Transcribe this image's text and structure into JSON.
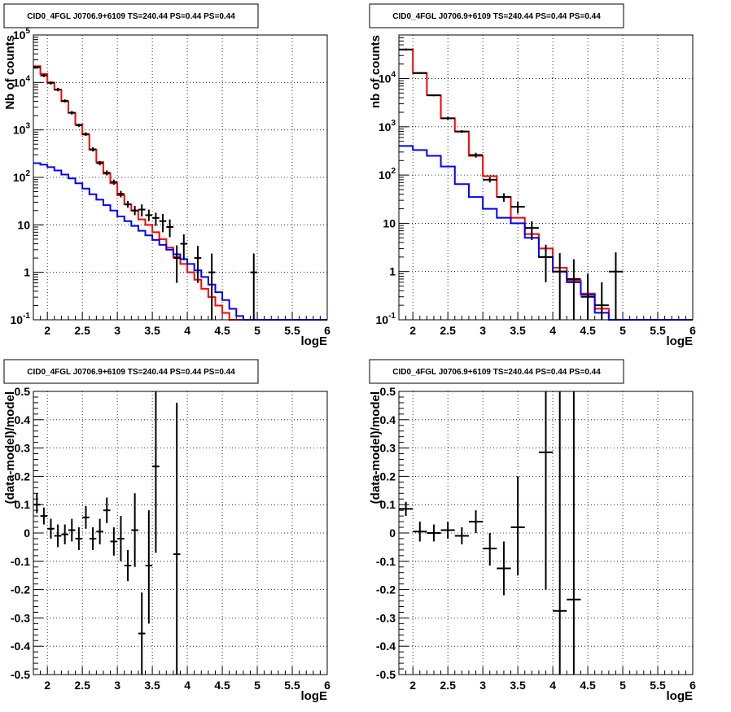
{
  "chart_data": [
    {
      "id": "tl",
      "type": "line",
      "title": "CID0_4FGL J0706.9+6109 TS=240.44 PS=0.44 PS=0.44",
      "xlabel": "logE",
      "ylabel": "Nb of counts",
      "log_y": true,
      "xlim": [
        1.8,
        6.0
      ],
      "ylim": [
        0.1,
        100000
      ],
      "grid": true,
      "x_ticks": [
        2,
        2.5,
        3,
        3.5,
        4,
        4.5,
        5,
        5.5,
        6
      ],
      "x_tick_labels": [
        "2",
        "2.5",
        "3",
        "3.5",
        "4",
        "4.5",
        "5",
        "5.5",
        "6"
      ],
      "y_ticks": [
        0.1,
        1,
        10,
        100,
        1000,
        10000,
        100000
      ],
      "y_tick_labels": [
        "10^-1",
        "1",
        "10",
        "10^2",
        "10^3",
        "10^4",
        "10^5"
      ],
      "series": [
        {
          "kind": "step",
          "color": "#ff0000",
          "edges": [
            1.8,
            1.9,
            2.0,
            2.1,
            2.2,
            2.3,
            2.4,
            2.5,
            2.6,
            2.7,
            2.8,
            2.9,
            3.0,
            3.1,
            3.2,
            3.3,
            3.4,
            3.5,
            3.6,
            3.7,
            3.8,
            3.9,
            4.0,
            4.1,
            4.2,
            4.3,
            4.4,
            4.5,
            4.6,
            4.7,
            4.8,
            4.9,
            5.0,
            5.1,
            5.2,
            5.3,
            5.4,
            5.5,
            5.6,
            5.7,
            5.8,
            5.9,
            6.0
          ],
          "values": [
            22000,
            15000,
            10000,
            7000,
            4000,
            2300,
            1300,
            800,
            380,
            210,
            120,
            75,
            42,
            27,
            20,
            13,
            10,
            7,
            5,
            3.3,
            2.1,
            1.5,
            1.0,
            0.7,
            0.45,
            0.3,
            0.2,
            0.14,
            0.1,
            0.1,
            0.1,
            0.1,
            0.1,
            0.1,
            0.1,
            0.1,
            0.1,
            0.1,
            0.1,
            0.1,
            0.1,
            0.1
          ]
        },
        {
          "kind": "step",
          "color": "#0000ff",
          "edges": [
            1.8,
            1.9,
            2.0,
            2.1,
            2.2,
            2.3,
            2.4,
            2.5,
            2.6,
            2.7,
            2.8,
            2.9,
            3.0,
            3.1,
            3.2,
            3.3,
            3.4,
            3.5,
            3.6,
            3.7,
            3.8,
            3.9,
            4.0,
            4.1,
            4.2,
            4.3,
            4.4,
            4.5,
            4.6,
            4.7,
            4.8,
            4.9,
            5.0,
            5.1,
            5.2,
            5.3,
            5.4,
            5.5,
            5.6,
            5.7,
            5.8,
            5.9,
            6.0
          ],
          "values": [
            200,
            185,
            165,
            140,
            115,
            95,
            75,
            58,
            44,
            34,
            26,
            20,
            15,
            12,
            9.5,
            7.5,
            6,
            4.8,
            3.8,
            3,
            2.4,
            1.9,
            1.5,
            1.1,
            0.8,
            0.55,
            0.38,
            0.26,
            0.17,
            0.12,
            0.1,
            0.1,
            0.1,
            0.1,
            0.1,
            0.1,
            0.1,
            0.1,
            0.1,
            0.1,
            0.1,
            0.1
          ]
        },
        {
          "kind": "points",
          "color": "#000000",
          "x": [
            1.85,
            1.95,
            2.05,
            2.15,
            2.25,
            2.35,
            2.45,
            2.55,
            2.65,
            2.75,
            2.85,
            2.95,
            3.05,
            3.15,
            3.25,
            3.35,
            3.45,
            3.55,
            3.65,
            3.75,
            3.85,
            3.95,
            4.15,
            4.35,
            4.95
          ],
          "y": [
            21000,
            14000,
            9800,
            7100,
            4100,
            2300,
            1250,
            820,
            390,
            200,
            125,
            80,
            45,
            27,
            20,
            21,
            16,
            14,
            12,
            9,
            2,
            4,
            2,
            1,
            1
          ],
          "ylo": [
            20000,
            13000,
            9000,
            6500,
            3800,
            2100,
            1150,
            750,
            350,
            180,
            110,
            70,
            38,
            23,
            16,
            15,
            12,
            9.5,
            7,
            5.5,
            0.6,
            1.8,
            0.6,
            0.1,
            0.1
          ],
          "yhi": [
            22000,
            15000,
            10500,
            7700,
            4400,
            2500,
            1350,
            890,
            430,
            220,
            140,
            90,
            52,
            32,
            25,
            27,
            21,
            18,
            17,
            13,
            3.7,
            6.3,
            3.6,
            2.5,
            2.5
          ],
          "xerr": 0.05
        }
      ]
    },
    {
      "id": "tr",
      "type": "line",
      "title": "CID0_4FGL J0706.9+6109 TS=240.44 PS=0.44 PS=0.44",
      "xlabel": "logE",
      "ylabel": "nb of counts",
      "log_y": true,
      "xlim": [
        1.8,
        6.0
      ],
      "ylim": [
        0.1,
        80000
      ],
      "grid": true,
      "x_ticks": [
        2,
        2.5,
        3,
        3.5,
        4,
        4.5,
        5,
        5.5,
        6
      ],
      "x_tick_labels": [
        "2",
        "2.5",
        "3",
        "3.5",
        "4",
        "4.5",
        "5",
        "5.5",
        "6"
      ],
      "y_ticks": [
        0.1,
        1,
        10,
        100,
        1000,
        10000
      ],
      "y_tick_labels": [
        "10^-1",
        "1",
        "10",
        "10^2",
        "10^3",
        "10^4"
      ],
      "series": [
        {
          "kind": "step",
          "color": "#ff0000",
          "edges": [
            1.8,
            2.0,
            2.2,
            2.4,
            2.6,
            2.8,
            3.0,
            3.2,
            3.4,
            3.6,
            3.8,
            4.0,
            4.2,
            4.4,
            4.6,
            4.8,
            5.0,
            5.2,
            5.4,
            5.6,
            5.8,
            6.0
          ],
          "values": [
            40000,
            13000,
            4500,
            1500,
            800,
            250,
            95,
            35,
            13,
            6,
            3,
            1.2,
            0.65,
            0.35,
            0.17,
            0.1,
            0.1,
            0.1,
            0.1,
            0.1,
            0.1
          ]
        },
        {
          "kind": "step",
          "color": "#0000ff",
          "edges": [
            1.8,
            2.0,
            2.2,
            2.4,
            2.6,
            2.8,
            3.0,
            3.2,
            3.4,
            3.6,
            3.8,
            4.0,
            4.2,
            4.4,
            4.6,
            4.8,
            5.0,
            5.2,
            5.4,
            5.6,
            5.8,
            6.0
          ],
          "values": [
            400,
            330,
            250,
            150,
            65,
            35,
            20,
            13,
            10,
            5,
            2,
            1,
            0.6,
            0.33,
            0.14,
            0.1,
            0.1,
            0.1,
            0.1,
            0.1,
            0.1
          ]
        },
        {
          "kind": "points",
          "color": "#000000",
          "x": [
            1.9,
            2.1,
            2.3,
            2.5,
            2.7,
            2.9,
            3.1,
            3.3,
            3.5,
            3.7,
            3.9,
            4.1,
            4.3,
            4.5,
            4.7,
            4.9
          ],
          "y": [
            40000,
            13000,
            4500,
            1500,
            800,
            260,
            80,
            35,
            22,
            8,
            2,
            1,
            0.7,
            0.3,
            0.2,
            1
          ],
          "ylo": [
            38000,
            12500,
            4300,
            1400,
            750,
            230,
            70,
            28,
            16,
            4.5,
            0.6,
            0.1,
            0.1,
            0.1,
            0.1,
            0.1
          ],
          "yhi": [
            42000,
            13500,
            4700,
            1600,
            850,
            290,
            90,
            42,
            28,
            11,
            3.6,
            2.4,
            1.8,
            0.9,
            0.6,
            2.5
          ],
          "xerr": 0.1
        }
      ]
    },
    {
      "id": "bl",
      "type": "scatter",
      "title": "CID0_4FGL J0706.9+6109 TS=240.44 PS=0.44 PS=0.44",
      "xlabel": "logE",
      "ylabel": "(data-model)/model",
      "log_y": false,
      "xlim": [
        1.8,
        6.0
      ],
      "ylim": [
        -0.5,
        0.5
      ],
      "grid": true,
      "x_ticks": [
        2,
        2.5,
        3,
        3.5,
        4,
        4.5,
        5,
        5.5,
        6
      ],
      "x_tick_labels": [
        "2",
        "2.5",
        "3",
        "3.5",
        "4",
        "4.5",
        "5",
        "5.5",
        "6"
      ],
      "y_ticks": [
        -0.5,
        -0.4,
        -0.3,
        -0.2,
        -0.1,
        0,
        0.1,
        0.2,
        0.3,
        0.4,
        0.5
      ],
      "y_tick_labels": [
        "-0.5",
        "-0.4",
        "-0.3",
        "-0.2",
        "-0.1",
        "0",
        "0.1",
        "0.2",
        "0.3",
        "0.4",
        "0.5"
      ],
      "series": [
        {
          "kind": "points",
          "color": "#000000",
          "x": [
            1.85,
            1.95,
            2.05,
            2.15,
            2.25,
            2.35,
            2.45,
            2.55,
            2.65,
            2.75,
            2.85,
            2.95,
            3.05,
            3.15,
            3.25,
            3.35,
            3.45,
            3.55,
            3.85
          ],
          "y": [
            0.1,
            0.06,
            0.015,
            -0.01,
            -0.005,
            0.01,
            -0.02,
            0.055,
            -0.02,
            0.005,
            0.08,
            -0.03,
            -0.02,
            -0.115,
            0.01,
            -0.355,
            -0.115,
            0.235,
            -0.075
          ],
          "ylo": [
            0.07,
            0.03,
            -0.02,
            -0.05,
            -0.04,
            -0.03,
            -0.06,
            0.015,
            -0.06,
            -0.04,
            0.035,
            -0.08,
            -0.1,
            -0.17,
            -0.12,
            -0.5,
            -0.32,
            -0.07,
            -0.5
          ],
          "yhi": [
            0.14,
            0.09,
            0.05,
            0.03,
            0.03,
            0.05,
            0.02,
            0.095,
            0.02,
            0.05,
            0.125,
            0.02,
            0.06,
            -0.06,
            0.14,
            -0.21,
            0.08,
            0.5,
            0.46
          ],
          "xerr": 0.05
        }
      ]
    },
    {
      "id": "br",
      "type": "scatter",
      "title": "CID0_4FGL J0706.9+6109 TS=240.44 PS=0.44 PS=0.44",
      "xlabel": "logE",
      "ylabel": "(data-model)/model",
      "log_y": false,
      "xlim": [
        1.8,
        6.0
      ],
      "ylim": [
        -0.5,
        0.5
      ],
      "grid": true,
      "x_ticks": [
        2,
        2.5,
        3,
        3.5,
        4,
        4.5,
        5,
        5.5,
        6
      ],
      "x_tick_labels": [
        "2",
        "2.5",
        "3",
        "3.5",
        "4",
        "4.5",
        "5",
        "5.5",
        "6"
      ],
      "y_ticks": [
        -0.5,
        -0.4,
        -0.3,
        -0.2,
        -0.1,
        0,
        0.1,
        0.2,
        0.3,
        0.4,
        0.5
      ],
      "y_tick_labels": [
        "-0.5",
        "-0.4",
        "-0.3",
        "-0.2",
        "-0.1",
        "0",
        "0.1",
        "0.2",
        "0.3",
        "0.4",
        "0.5"
      ],
      "series": [
        {
          "kind": "points",
          "color": "#000000",
          "x": [
            1.9,
            2.1,
            2.3,
            2.5,
            2.7,
            2.9,
            3.1,
            3.3,
            3.5,
            3.9,
            4.1,
            4.3
          ],
          "y": [
            0.085,
            0.005,
            0.0,
            0.01,
            -0.01,
            0.04,
            -0.055,
            -0.125,
            0.02,
            0.285,
            -0.275,
            -0.235
          ],
          "ylo": [
            0.06,
            -0.03,
            -0.03,
            -0.02,
            -0.04,
            0.0,
            -0.115,
            -0.22,
            -0.15,
            -0.2,
            -0.5,
            -0.5
          ],
          "yhi": [
            0.11,
            0.04,
            0.03,
            0.04,
            0.02,
            0.08,
            0.0,
            -0.03,
            0.2,
            0.5,
            0.5,
            0.5
          ],
          "xerr": 0.1
        }
      ]
    }
  ]
}
